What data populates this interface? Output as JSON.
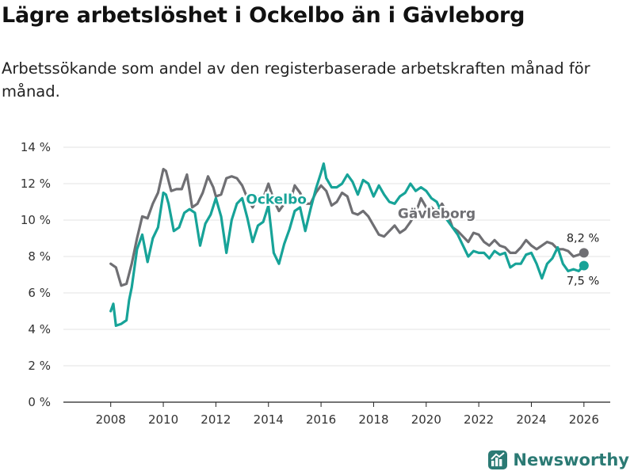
{
  "title": "Lägre arbetslöshet i Ockelbo än i Gävleborg",
  "subtitle": "Arbetssökande som andel av den registerbaserade arbetskraften månad för månad.",
  "brand": {
    "name": "Newsworthy",
    "icon": "bar-chart-logo-icon"
  },
  "colors": {
    "ockelbo": "#17a398",
    "gavleborg": "#6f6f73",
    "grid": "#e3e3e3",
    "brand": "#2b7a74"
  },
  "chart_data": {
    "type": "line",
    "xlabel": "",
    "ylabel": "",
    "xlim": [
      2006.2,
      2027.0
    ],
    "ylim": [
      0,
      14
    ],
    "x_ticks": [
      2008,
      2010,
      2012,
      2014,
      2016,
      2018,
      2020,
      2022,
      2024,
      2026
    ],
    "x_tick_labels": [
      "2008",
      "2010",
      "2012",
      "2014",
      "2016",
      "2018",
      "2020",
      "2022",
      "2024",
      "2026"
    ],
    "y_ticks": [
      0,
      2,
      4,
      6,
      8,
      10,
      12,
      14
    ],
    "y_tick_labels": [
      "0 %",
      "2 %",
      "4 %",
      "6 %",
      "8 %",
      "10 %",
      "12 %",
      "14 %"
    ],
    "grid": true,
    "series": [
      {
        "name": "Gävleborg",
        "color": "#6f6f73",
        "end_label": "8,2 %",
        "x": [
          2008.0,
          2008.2,
          2008.4,
          2008.6,
          2008.8,
          2009.0,
          2009.2,
          2009.4,
          2009.6,
          2009.8,
          2010.0,
          2010.1,
          2010.3,
          2010.5,
          2010.7,
          2010.9,
          2011.1,
          2011.3,
          2011.5,
          2011.7,
          2011.9,
          2012.0,
          2012.2,
          2012.4,
          2012.6,
          2012.8,
          2013.0,
          2013.2,
          2013.4,
          2013.6,
          2013.8,
          2014.0,
          2014.2,
          2014.4,
          2014.6,
          2014.8,
          2015.0,
          2015.2,
          2015.4,
          2015.6,
          2015.8,
          2016.0,
          2016.2,
          2016.4,
          2016.6,
          2016.8,
          2017.0,
          2017.2,
          2017.4,
          2017.6,
          2017.8,
          2018.0,
          2018.2,
          2018.4,
          2018.6,
          2018.8,
          2019.0,
          2019.2,
          2019.4,
          2019.6,
          2019.8,
          2020.0,
          2020.2,
          2020.4,
          2020.6,
          2020.8,
          2021.0,
          2021.2,
          2021.4,
          2021.6,
          2021.8,
          2022.0,
          2022.2,
          2022.4,
          2022.6,
          2022.8,
          2023.0,
          2023.2,
          2023.4,
          2023.6,
          2023.8,
          2024.0,
          2024.2,
          2024.4,
          2024.6,
          2024.8,
          2025.0,
          2025.2,
          2025.4,
          2025.6,
          2025.8,
          2026.0
        ],
        "y": [
          7.6,
          7.4,
          6.4,
          6.5,
          7.6,
          9.0,
          10.2,
          10.1,
          10.9,
          11.5,
          12.8,
          12.7,
          11.6,
          11.7,
          11.7,
          12.5,
          10.7,
          10.9,
          11.5,
          12.4,
          11.8,
          11.3,
          11.4,
          12.3,
          12.4,
          12.3,
          11.9,
          11.2,
          10.7,
          11.3,
          11.2,
          12.0,
          11.1,
          10.5,
          10.9,
          10.9,
          11.9,
          11.5,
          10.9,
          10.9,
          11.5,
          11.9,
          11.6,
          10.8,
          11.0,
          11.5,
          11.3,
          10.4,
          10.3,
          10.5,
          10.2,
          9.7,
          9.2,
          9.1,
          9.4,
          9.7,
          9.3,
          9.5,
          9.9,
          10.4,
          11.2,
          10.7,
          10.7,
          10.4,
          10.9,
          10.4,
          9.6,
          9.4,
          9.1,
          8.8,
          9.3,
          9.2,
          8.8,
          8.6,
          8.9,
          8.6,
          8.5,
          8.2,
          8.2,
          8.5,
          8.9,
          8.6,
          8.4,
          8.6,
          8.8,
          8.7,
          8.4,
          8.4,
          8.3,
          8.0,
          8.1,
          8.2
        ]
      },
      {
        "name": "Ockelbo",
        "color": "#17a398",
        "end_label": "7,5 %",
        "x": [
          2008.0,
          2008.1,
          2008.2,
          2008.4,
          2008.6,
          2008.7,
          2008.8,
          2009.0,
          2009.2,
          2009.4,
          2009.6,
          2009.8,
          2010.0,
          2010.1,
          2010.2,
          2010.4,
          2010.6,
          2010.8,
          2011.0,
          2011.2,
          2011.4,
          2011.6,
          2011.8,
          2012.0,
          2012.2,
          2012.4,
          2012.6,
          2012.8,
          2013.0,
          2013.2,
          2013.4,
          2013.6,
          2013.8,
          2014.0,
          2014.2,
          2014.4,
          2014.6,
          2014.8,
          2015.0,
          2015.2,
          2015.4,
          2015.6,
          2015.8,
          2016.0,
          2016.1,
          2016.2,
          2016.4,
          2016.6,
          2016.8,
          2017.0,
          2017.2,
          2017.4,
          2017.6,
          2017.8,
          2018.0,
          2018.2,
          2018.4,
          2018.6,
          2018.8,
          2019.0,
          2019.2,
          2019.4,
          2019.6,
          2019.8,
          2020.0,
          2020.2,
          2020.4,
          2020.6,
          2020.8,
          2021.0,
          2021.2,
          2021.4,
          2021.6,
          2021.8,
          2022.0,
          2022.2,
          2022.4,
          2022.6,
          2022.8,
          2023.0,
          2023.2,
          2023.4,
          2023.6,
          2023.8,
          2024.0,
          2024.2,
          2024.4,
          2024.6,
          2024.8,
          2025.0,
          2025.2,
          2025.4,
          2025.6,
          2025.8,
          2026.0
        ],
        "y": [
          5.0,
          5.4,
          4.2,
          4.3,
          4.5,
          5.6,
          6.3,
          8.4,
          9.2,
          7.7,
          9.0,
          9.6,
          11.5,
          11.4,
          10.9,
          9.4,
          9.6,
          10.4,
          10.6,
          10.4,
          8.6,
          9.8,
          10.3,
          11.2,
          10.2,
          8.2,
          10.0,
          10.9,
          11.2,
          10.1,
          8.8,
          9.7,
          9.9,
          10.8,
          8.2,
          7.6,
          8.7,
          9.5,
          10.5,
          10.7,
          9.4,
          10.6,
          11.7,
          12.6,
          13.1,
          12.3,
          11.8,
          11.8,
          12.0,
          12.5,
          12.1,
          11.4,
          12.2,
          12.0,
          11.3,
          11.9,
          11.4,
          11.0,
          10.9,
          11.3,
          11.5,
          12.0,
          11.6,
          11.8,
          11.6,
          11.2,
          11.0,
          10.4,
          10.0,
          9.6,
          9.2,
          8.6,
          8.0,
          8.3,
          8.2,
          8.2,
          7.9,
          8.3,
          8.1,
          8.2,
          7.4,
          7.6,
          7.6,
          8.1,
          8.2,
          7.6,
          6.8,
          7.6,
          7.9,
          8.5,
          7.6,
          7.2,
          7.3,
          7.2,
          7.5
        ]
      }
    ],
    "annotations": [
      {
        "text": "Ockelbo",
        "series": "Ockelbo"
      },
      {
        "text": "Gävleborg",
        "series": "Gävleborg"
      }
    ]
  }
}
